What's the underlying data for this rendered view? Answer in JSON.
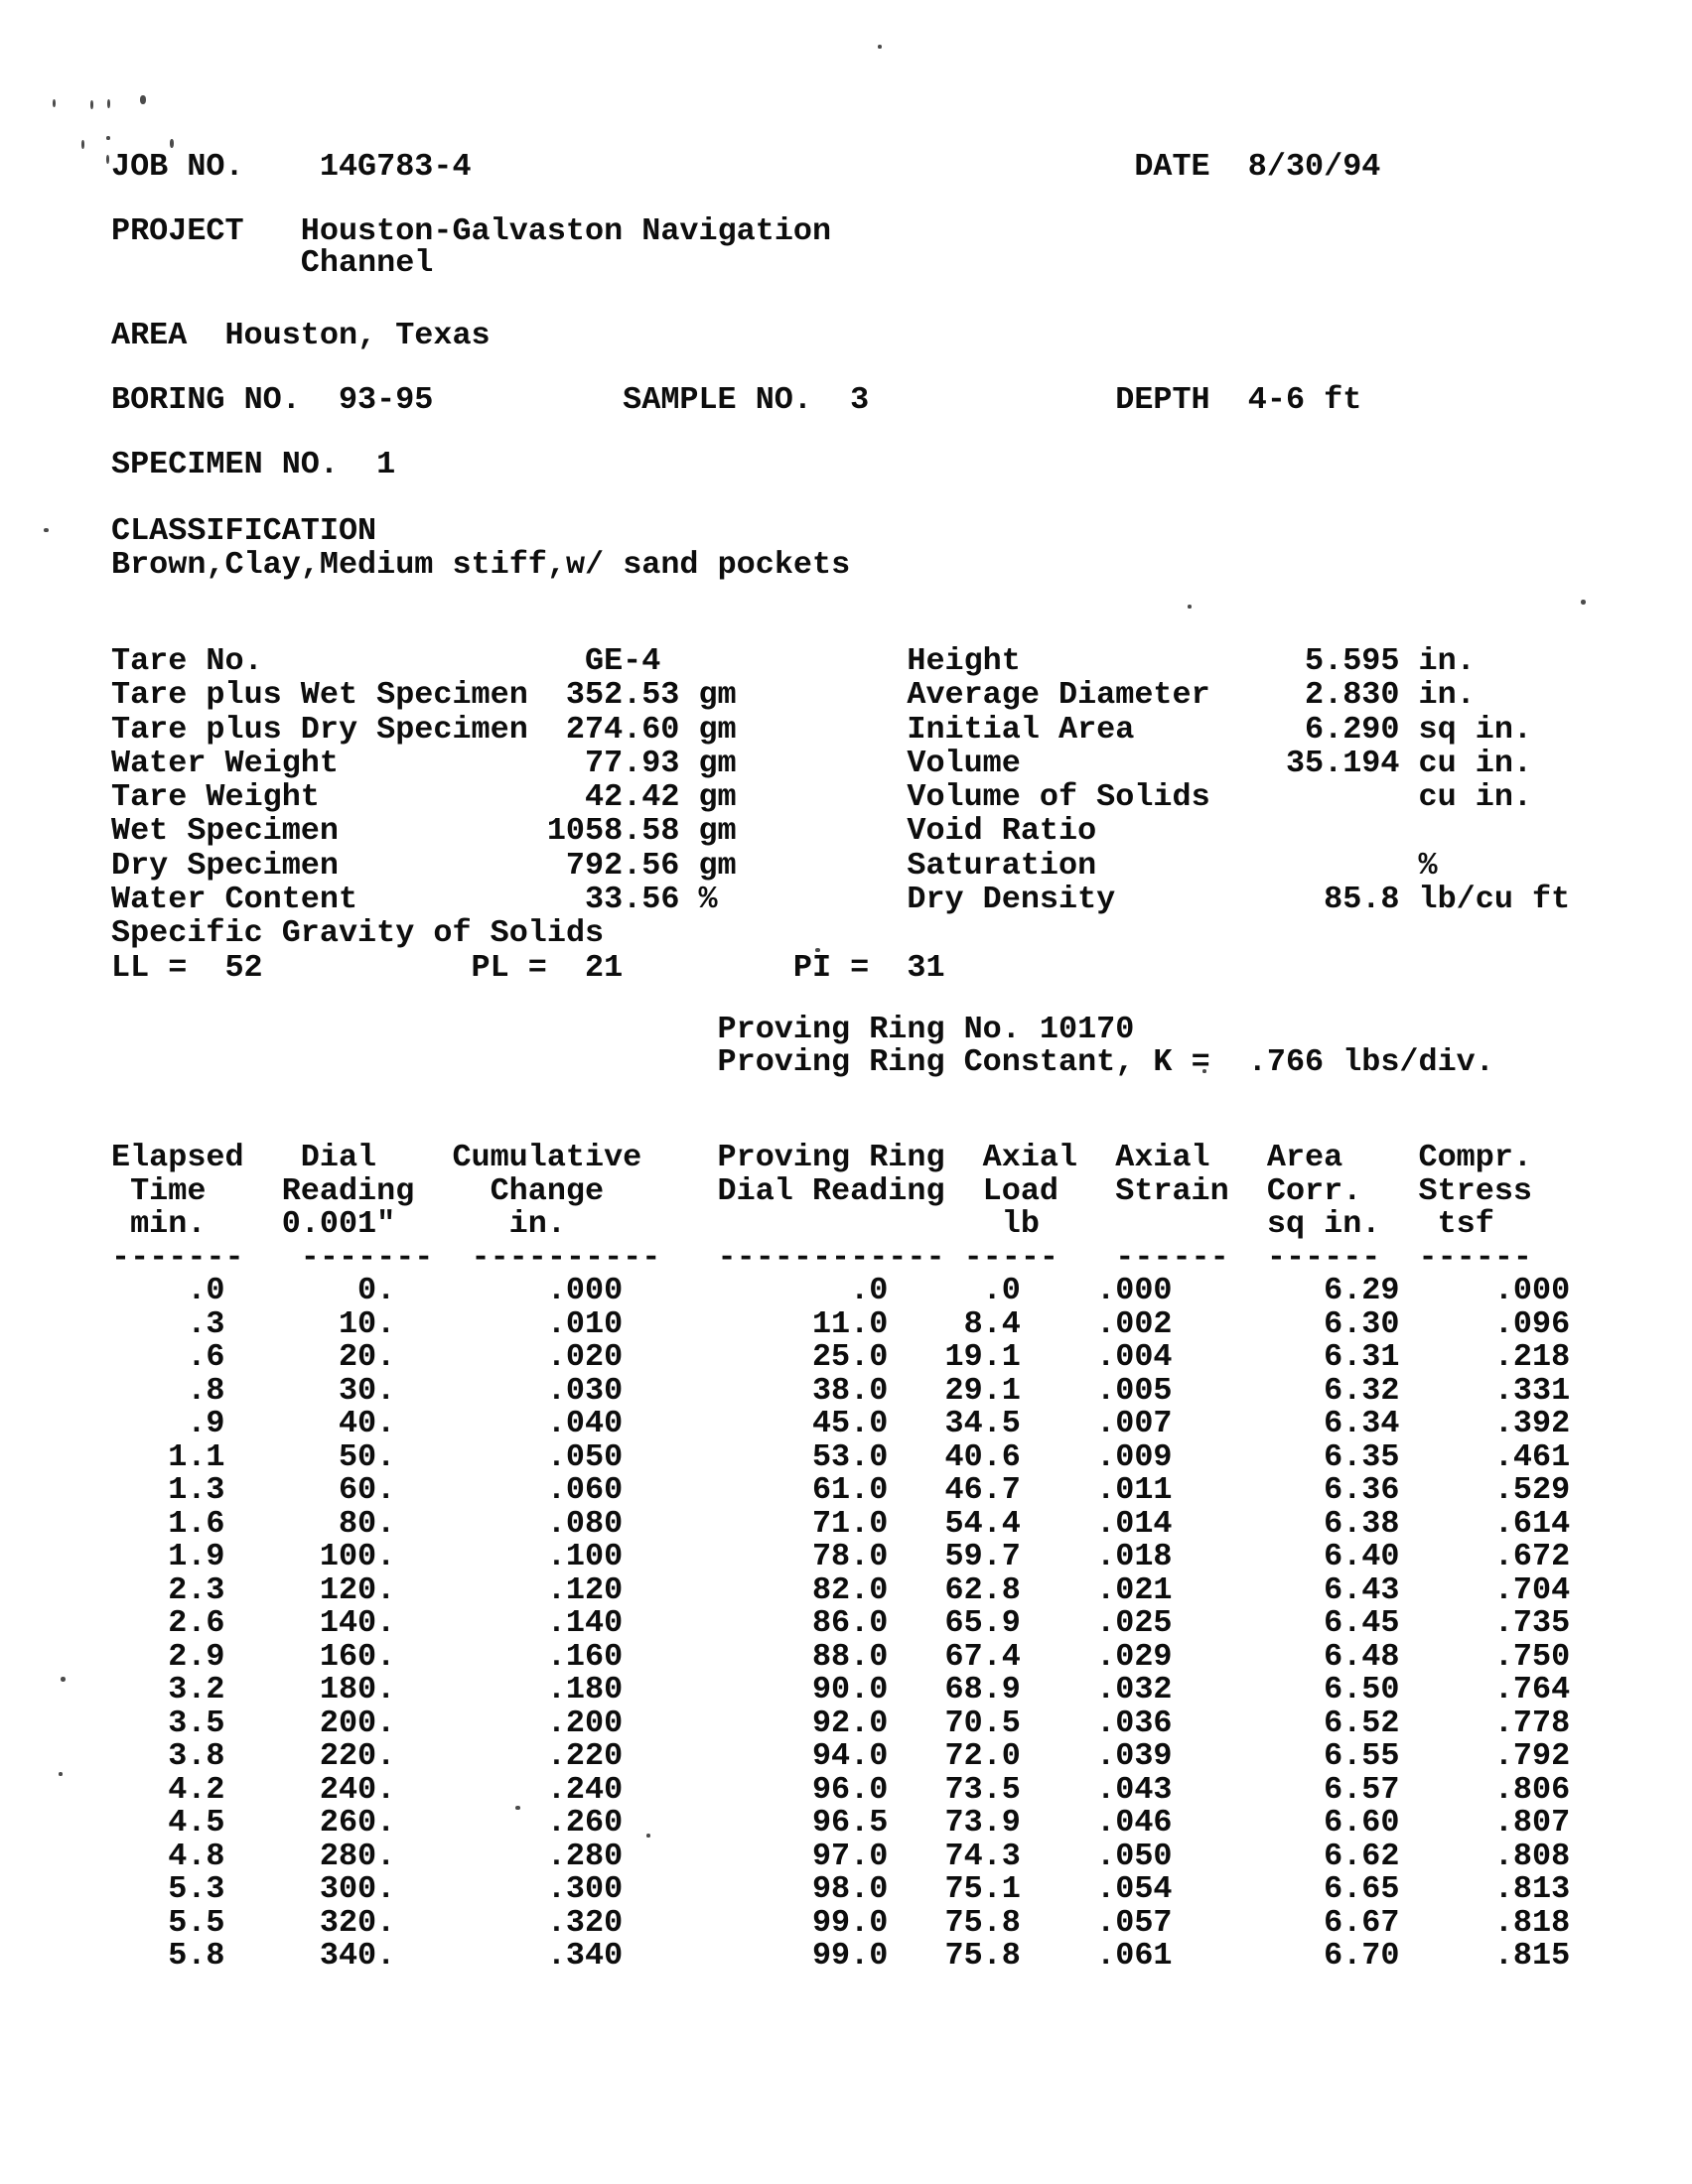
{
  "header": {
    "job_label": "JOB NO.",
    "job_value": "14G783-4",
    "date_label": "DATE",
    "date_value": "8/30/94",
    "project_label": "PROJECT",
    "project_line1": "Houston-Galvaston Navigation",
    "project_line2": "Channel",
    "area_label": "AREA",
    "area_value": "Houston, Texas",
    "boring_label": "BORING NO.",
    "boring_value": "93-95",
    "sample_label": "SAMPLE NO.",
    "sample_value": "3",
    "depth_label": "DEPTH",
    "depth_value": "4-6 ft",
    "specimen_label": "SPECIMEN NO.",
    "specimen_value": "1",
    "classification_label": "CLASSIFICATION",
    "classification_value": "Brown,Clay,Medium stiff,w/ sand pockets"
  },
  "specimen": {
    "tare_no_label": "Tare No.",
    "tare_no": "GE-4",
    "tare_wet_label": "Tare plus Wet Specimen",
    "tare_wet": "352.53",
    "tare_wet_unit": "gm",
    "tare_dry_label": "Tare plus Dry Specimen",
    "tare_dry": "274.60",
    "tare_dry_unit": "gm",
    "water_weight_label": "Water Weight",
    "water_weight": "77.93",
    "water_weight_unit": "gm",
    "tare_weight_label": "Tare Weight",
    "tare_weight": "42.42",
    "tare_weight_unit": "gm",
    "wet_specimen_label": "Wet Specimen",
    "wet_specimen": "1058.58",
    "wet_specimen_unit": "gm",
    "dry_specimen_label": "Dry Specimen",
    "dry_specimen": "792.56",
    "dry_specimen_unit": "gm",
    "water_content_label": "Water Content",
    "water_content": "33.56",
    "water_content_unit": "%",
    "specific_gravity_label": "Specific Gravity of Solids",
    "height_label": "Height",
    "height": "5.595",
    "height_unit": "in.",
    "avg_diameter_label": "Average Diameter",
    "avg_diameter": "2.830",
    "avg_diameter_unit": "in.",
    "initial_area_label": "Initial Area",
    "initial_area": "6.290",
    "initial_area_unit": "sq in.",
    "volume_label": "Volume",
    "volume": "35.194",
    "volume_unit": "cu in.",
    "volume_solids_label": "Volume of Solids",
    "volume_solids": "",
    "volume_solids_unit": "cu in.",
    "void_ratio_label": "Void Ratio",
    "void_ratio": "",
    "saturation_label": "Saturation",
    "saturation": "",
    "saturation_unit": "%",
    "dry_density_label": "Dry Density",
    "dry_density": "85.8",
    "dry_density_unit": "lb/cu ft"
  },
  "atterberg": {
    "ll_label": "LL =",
    "ll": "52",
    "pl_label": "PL =",
    "pl": "21",
    "pi_label": "PI =",
    "pi": "31"
  },
  "proving_ring": {
    "no_label": "Proving Ring No.",
    "no": "10170",
    "k_label": "Proving Ring Constant, K =",
    "k": ".766",
    "k_unit": "lbs/div."
  },
  "table": {
    "column_names": [
      "elapsed-time",
      "dial-reading",
      "cumulative-change",
      "proving-ring-dial-reading",
      "axial-load",
      "axial-strain",
      "area-corr",
      "compr-stress"
    ],
    "header_row1": [
      "Elapsed",
      "Dial",
      "Cumulative",
      "Proving Ring",
      "Axial",
      "Axial",
      "Area",
      "Compr."
    ],
    "header_row2": [
      "Time",
      "Reading",
      "Change",
      "Dial Reading",
      "Load",
      "Strain",
      "Corr.",
      "Stress"
    ],
    "header_row3": [
      "min.",
      "0.001\"",
      "in.",
      "",
      "lb",
      "",
      "sq in.",
      "tsf"
    ],
    "rules": [
      "-------",
      "-------",
      "----------",
      "------------",
      "-----",
      "------",
      "------",
      "------"
    ],
    "rows": [
      [
        ".0",
        "0.",
        ".000",
        ".0",
        ".0",
        ".000",
        "6.29",
        ".000"
      ],
      [
        ".3",
        "10.",
        ".010",
        "11.0",
        "8.4",
        ".002",
        "6.30",
        ".096"
      ],
      [
        ".6",
        "20.",
        ".020",
        "25.0",
        "19.1",
        ".004",
        "6.31",
        ".218"
      ],
      [
        ".8",
        "30.",
        ".030",
        "38.0",
        "29.1",
        ".005",
        "6.32",
        ".331"
      ],
      [
        ".9",
        "40.",
        ".040",
        "45.0",
        "34.5",
        ".007",
        "6.34",
        ".392"
      ],
      [
        "1.1",
        "50.",
        ".050",
        "53.0",
        "40.6",
        ".009",
        "6.35",
        ".461"
      ],
      [
        "1.3",
        "60.",
        ".060",
        "61.0",
        "46.7",
        ".011",
        "6.36",
        ".529"
      ],
      [
        "1.6",
        "80.",
        ".080",
        "71.0",
        "54.4",
        ".014",
        "6.38",
        ".614"
      ],
      [
        "1.9",
        "100.",
        ".100",
        "78.0",
        "59.7",
        ".018",
        "6.40",
        ".672"
      ],
      [
        "2.3",
        "120.",
        ".120",
        "82.0",
        "62.8",
        ".021",
        "6.43",
        ".704"
      ],
      [
        "2.6",
        "140.",
        ".140",
        "86.0",
        "65.9",
        ".025",
        "6.45",
        ".735"
      ],
      [
        "2.9",
        "160.",
        ".160",
        "88.0",
        "67.4",
        ".029",
        "6.48",
        ".750"
      ],
      [
        "3.2",
        "180.",
        ".180",
        "90.0",
        "68.9",
        ".032",
        "6.50",
        ".764"
      ],
      [
        "3.5",
        "200.",
        ".200",
        "92.0",
        "70.5",
        ".036",
        "6.52",
        ".778"
      ],
      [
        "3.8",
        "220.",
        ".220",
        "94.0",
        "72.0",
        ".039",
        "6.55",
        ".792"
      ],
      [
        "4.2",
        "240.",
        ".240",
        "96.0",
        "73.5",
        ".043",
        "6.57",
        ".806"
      ],
      [
        "4.5",
        "260.",
        ".260",
        "96.5",
        "73.9",
        ".046",
        "6.60",
        ".807"
      ],
      [
        "4.8",
        "280.",
        ".280",
        "97.0",
        "74.3",
        ".050",
        "6.62",
        ".808"
      ],
      [
        "5.3",
        "300.",
        ".300",
        "98.0",
        "75.1",
        ".054",
        "6.65",
        ".813"
      ],
      [
        "5.5",
        "320.",
        ".320",
        "99.0",
        "75.8",
        ".057",
        "6.67",
        ".818"
      ],
      [
        "5.8",
        "340.",
        ".340",
        "99.0",
        "75.8",
        ".061",
        "6.70",
        ".815"
      ]
    ]
  }
}
